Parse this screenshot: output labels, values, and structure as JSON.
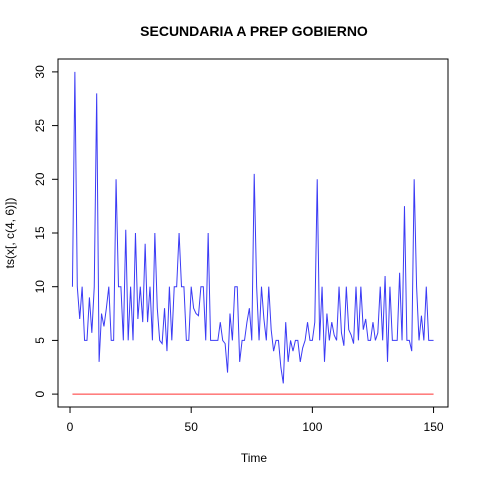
{
  "chart_data": {
    "type": "line",
    "title": "SECUNDARIA A PREP GOBIERNO",
    "xlabel": "Time",
    "ylabel": "ts(x[, c(4, 6)])",
    "x": [
      1,
      2,
      3,
      4,
      5,
      6,
      7,
      8,
      9,
      10,
      11,
      12,
      13,
      14,
      15,
      16,
      17,
      18,
      19,
      20,
      21,
      22,
      23,
      24,
      25,
      26,
      27,
      28,
      29,
      30,
      31,
      32,
      33,
      34,
      35,
      36,
      37,
      38,
      39,
      40,
      41,
      42,
      43,
      44,
      45,
      46,
      47,
      48,
      49,
      50,
      51,
      52,
      53,
      54,
      55,
      56,
      57,
      58,
      59,
      60,
      61,
      62,
      63,
      64,
      65,
      66,
      67,
      68,
      69,
      70,
      71,
      72,
      73,
      74,
      75,
      76,
      77,
      78,
      79,
      80,
      81,
      82,
      83,
      84,
      85,
      86,
      87,
      88,
      89,
      90,
      91,
      92,
      93,
      94,
      95,
      96,
      97,
      98,
      99,
      100,
      101,
      102,
      103,
      104,
      105,
      106,
      107,
      108,
      109,
      110,
      111,
      112,
      113,
      114,
      115,
      116,
      117,
      118,
      119,
      120,
      121,
      122,
      123,
      124,
      125,
      126,
      127,
      128,
      129,
      130,
      131,
      132,
      133,
      134,
      135,
      136,
      137,
      138,
      139,
      140,
      141,
      142,
      143,
      144,
      145,
      146,
      147,
      148,
      149,
      150
    ],
    "series": [
      {
        "color": "#3b3bf5",
        "values": [
          10,
          30,
          10,
          7,
          10,
          5,
          5,
          9,
          5.7,
          10,
          28,
          3,
          7.5,
          6.3,
          8,
          10,
          5,
          5,
          20,
          10,
          10,
          5,
          15.3,
          5,
          10,
          5,
          15,
          7,
          10,
          6.7,
          14,
          6.7,
          10,
          5,
          15,
          8,
          5,
          4.7,
          8,
          4,
          10,
          5,
          10,
          10,
          15,
          10,
          10,
          5,
          5,
          10,
          8,
          7.5,
          7.3,
          10,
          10,
          5,
          15,
          5,
          5,
          5,
          5,
          6.7,
          5,
          4.7,
          2,
          7.5,
          5,
          10,
          10,
          3,
          5,
          5,
          6.7,
          8,
          5,
          20.5,
          10,
          5,
          10,
          7,
          5,
          10,
          6,
          4,
          5,
          5,
          2.5,
          1,
          6.7,
          3,
          5,
          4,
          5,
          5,
          3,
          4.3,
          5,
          6.7,
          5,
          5,
          6.7,
          20,
          5,
          10,
          3,
          7.5,
          5,
          6.7,
          5.5,
          5,
          10,
          5.7,
          4.5,
          10,
          6,
          5.5,
          4.7,
          10,
          5,
          10,
          6,
          7,
          5,
          5,
          6.7,
          5,
          5.7,
          10,
          5,
          11,
          3,
          10,
          5,
          5,
          5,
          11.3,
          5,
          17.5,
          5,
          5,
          4,
          20,
          10,
          5,
          7.3,
          5,
          10,
          5,
          5,
          5
        ]
      },
      {
        "color": "#ff3030",
        "values": [
          0,
          0,
          0,
          0,
          0,
          0,
          0,
          0,
          0,
          0,
          0,
          0,
          0,
          0,
          0,
          0,
          0,
          0,
          0,
          0,
          0,
          0,
          0,
          0,
          0,
          0,
          0,
          0,
          0,
          0,
          0,
          0,
          0,
          0,
          0,
          0,
          0,
          0,
          0,
          0,
          0,
          0,
          0,
          0,
          0,
          0,
          0,
          0,
          0,
          0,
          0,
          0,
          0,
          0,
          0,
          0,
          0,
          0,
          0,
          0,
          0,
          0,
          0,
          0,
          0,
          0,
          0,
          0,
          0,
          0,
          0,
          0,
          0,
          0,
          0,
          0,
          0,
          0,
          0,
          0,
          0,
          0,
          0,
          0,
          0,
          0,
          0,
          0,
          0,
          0,
          0,
          0,
          0,
          0,
          0,
          0,
          0,
          0,
          0,
          0,
          0,
          0,
          0,
          0,
          0,
          0,
          0,
          0,
          0,
          0,
          0,
          0,
          0,
          0,
          0,
          0,
          0,
          0,
          0,
          0,
          0,
          0,
          0,
          0,
          0,
          0,
          0,
          0,
          0,
          0,
          0,
          0,
          0,
          0,
          0,
          0,
          0,
          0,
          0,
          0,
          0,
          0,
          0,
          0,
          0,
          0,
          0,
          0,
          0,
          0
        ]
      }
    ],
    "xlim": [
      -4.96,
      155.96
    ],
    "xticks": [
      0,
      50,
      100,
      150
    ],
    "ylim": [
      -1.2,
      31.2
    ],
    "yticks": [
      0,
      5,
      10,
      15,
      20,
      25,
      30
    ],
    "grid": false
  }
}
